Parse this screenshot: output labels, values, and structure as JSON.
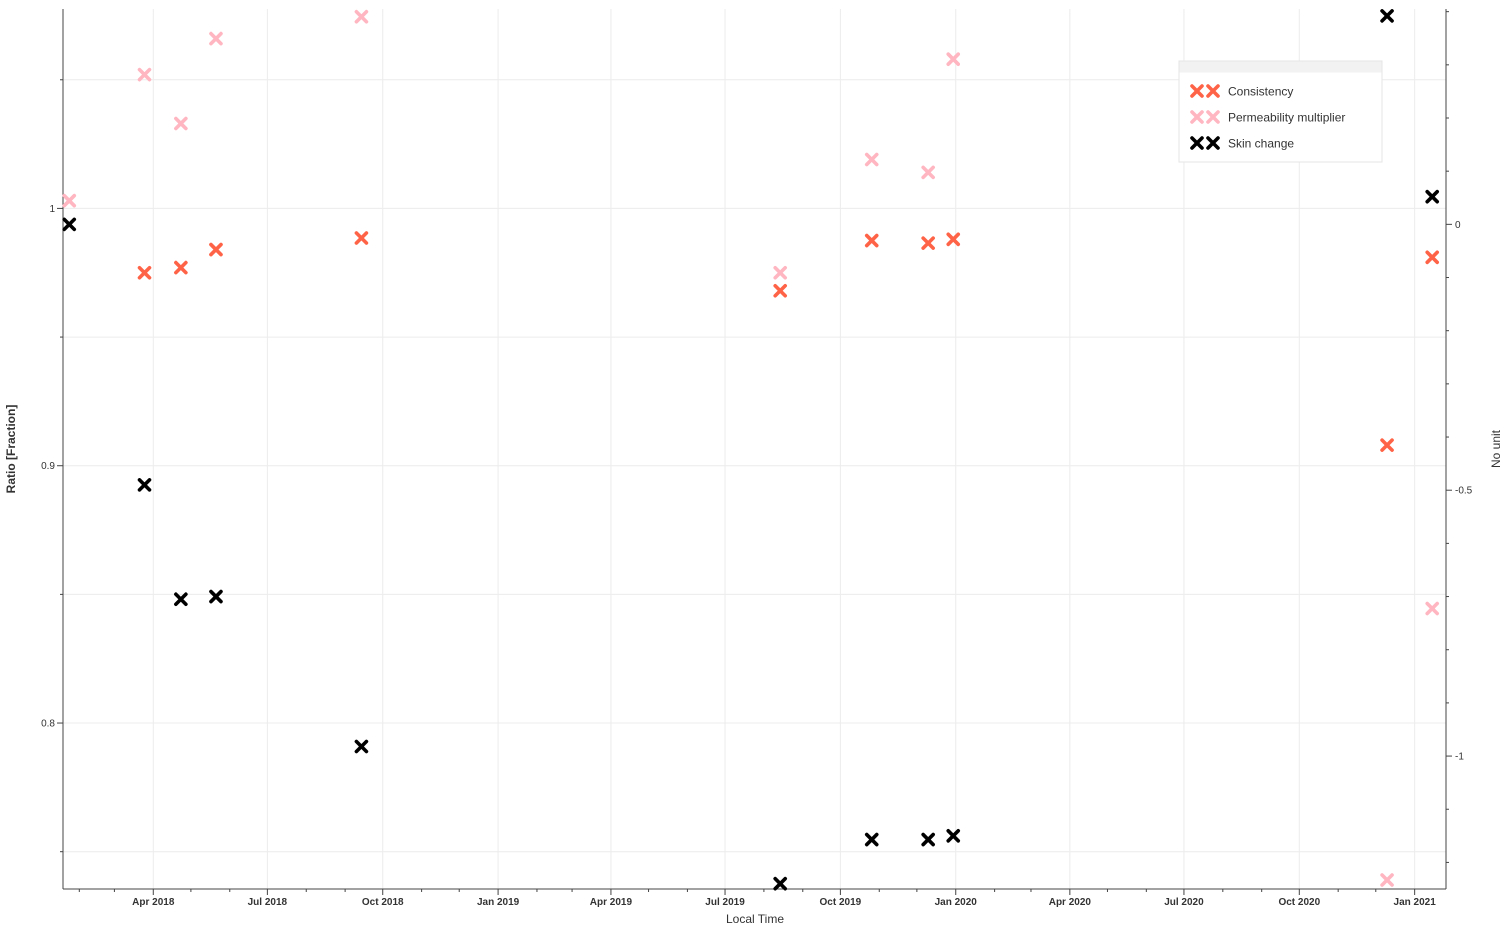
{
  "chart_data": {
    "type": "scatter",
    "title": "",
    "xlabel": "Local Time",
    "ylabel": "Ratio [Fraction]",
    "y2label": "No unit",
    "x_ticks": [
      "Apr 2018",
      "Jul 2018",
      "Oct 2018",
      "Jan 2019",
      "Apr 2019",
      "Jul 2019",
      "Oct 2019",
      "Jan 2020",
      "Apr 2020",
      "Jul 2020",
      "Oct 2020",
      "Jan 2021"
    ],
    "y_ticks": [
      "0.8",
      "0.9",
      "1"
    ],
    "y2_ticks": [
      "-1",
      "-0.5",
      "0"
    ],
    "xlim": [
      "2018-01-19",
      "2021-01-26"
    ],
    "ylim": [
      0.7355,
      1.0775
    ],
    "y2lim": [
      -1.25,
      0.405
    ],
    "grid": true,
    "legend_position": "top-right",
    "series": [
      {
        "name": "Consistency",
        "axis": "left",
        "color": "#FF6347",
        "x": [
          "2018-03-25",
          "2018-04-23",
          "2018-05-21",
          "2018-09-14",
          "2019-08-14",
          "2019-10-26",
          "2019-12-10",
          "2019-12-30",
          "2020-12-10",
          "2021-01-15"
        ],
        "y": [
          0.975,
          0.977,
          0.984,
          0.9885,
          0.968,
          0.9875,
          0.9865,
          0.988,
          0.908,
          0.981
        ]
      },
      {
        "name": "Permeability multiplier",
        "axis": "left",
        "color": "#FFB6C1",
        "x": [
          "2018-01-24",
          "2018-03-25",
          "2018-04-23",
          "2018-05-21",
          "2018-09-14",
          "2019-08-14",
          "2019-10-26",
          "2019-12-10",
          "2019-12-30",
          "2020-12-10",
          "2021-01-15"
        ],
        "y": [
          1.003,
          1.052,
          1.033,
          1.066,
          1.0745,
          0.975,
          1.019,
          1.014,
          1.058,
          0.739,
          0.8445
        ]
      },
      {
        "name": "Skin change",
        "axis": "right",
        "color": "#000000",
        "x": [
          "2018-01-24",
          "2018-03-25",
          "2018-04-23",
          "2018-05-21",
          "2018-09-14",
          "2019-08-14",
          "2019-10-26",
          "2019-12-10",
          "2019-12-30",
          "2020-12-10",
          "2021-01-15"
        ],
        "y": [
          0.0,
          -0.49,
          -0.705,
          -0.7,
          -0.982,
          -1.24,
          -1.157,
          -1.157,
          -1.15,
          0.392,
          0.052
        ]
      }
    ]
  }
}
